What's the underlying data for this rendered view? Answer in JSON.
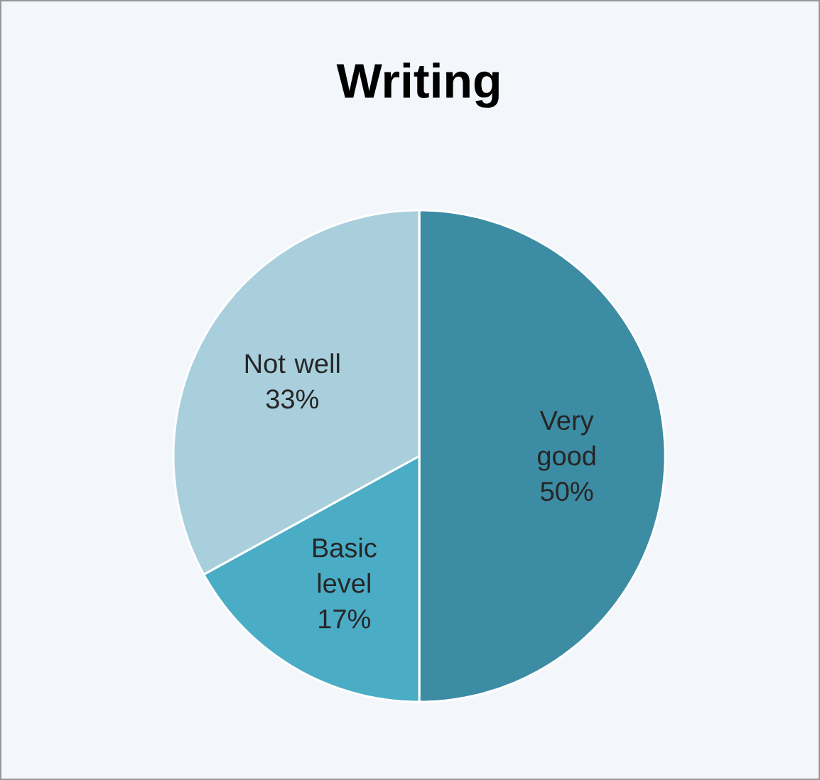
{
  "chart_data": {
    "type": "pie",
    "title": "Writing",
    "categories": [
      "Very good",
      "Basic level",
      "Not well"
    ],
    "values": [
      50,
      17,
      33
    ],
    "value_labels": [
      "50%",
      "17%",
      "33%"
    ],
    "colors": [
      "#3c8ca4",
      "#4bacc6",
      "#a9cfdd"
    ]
  }
}
